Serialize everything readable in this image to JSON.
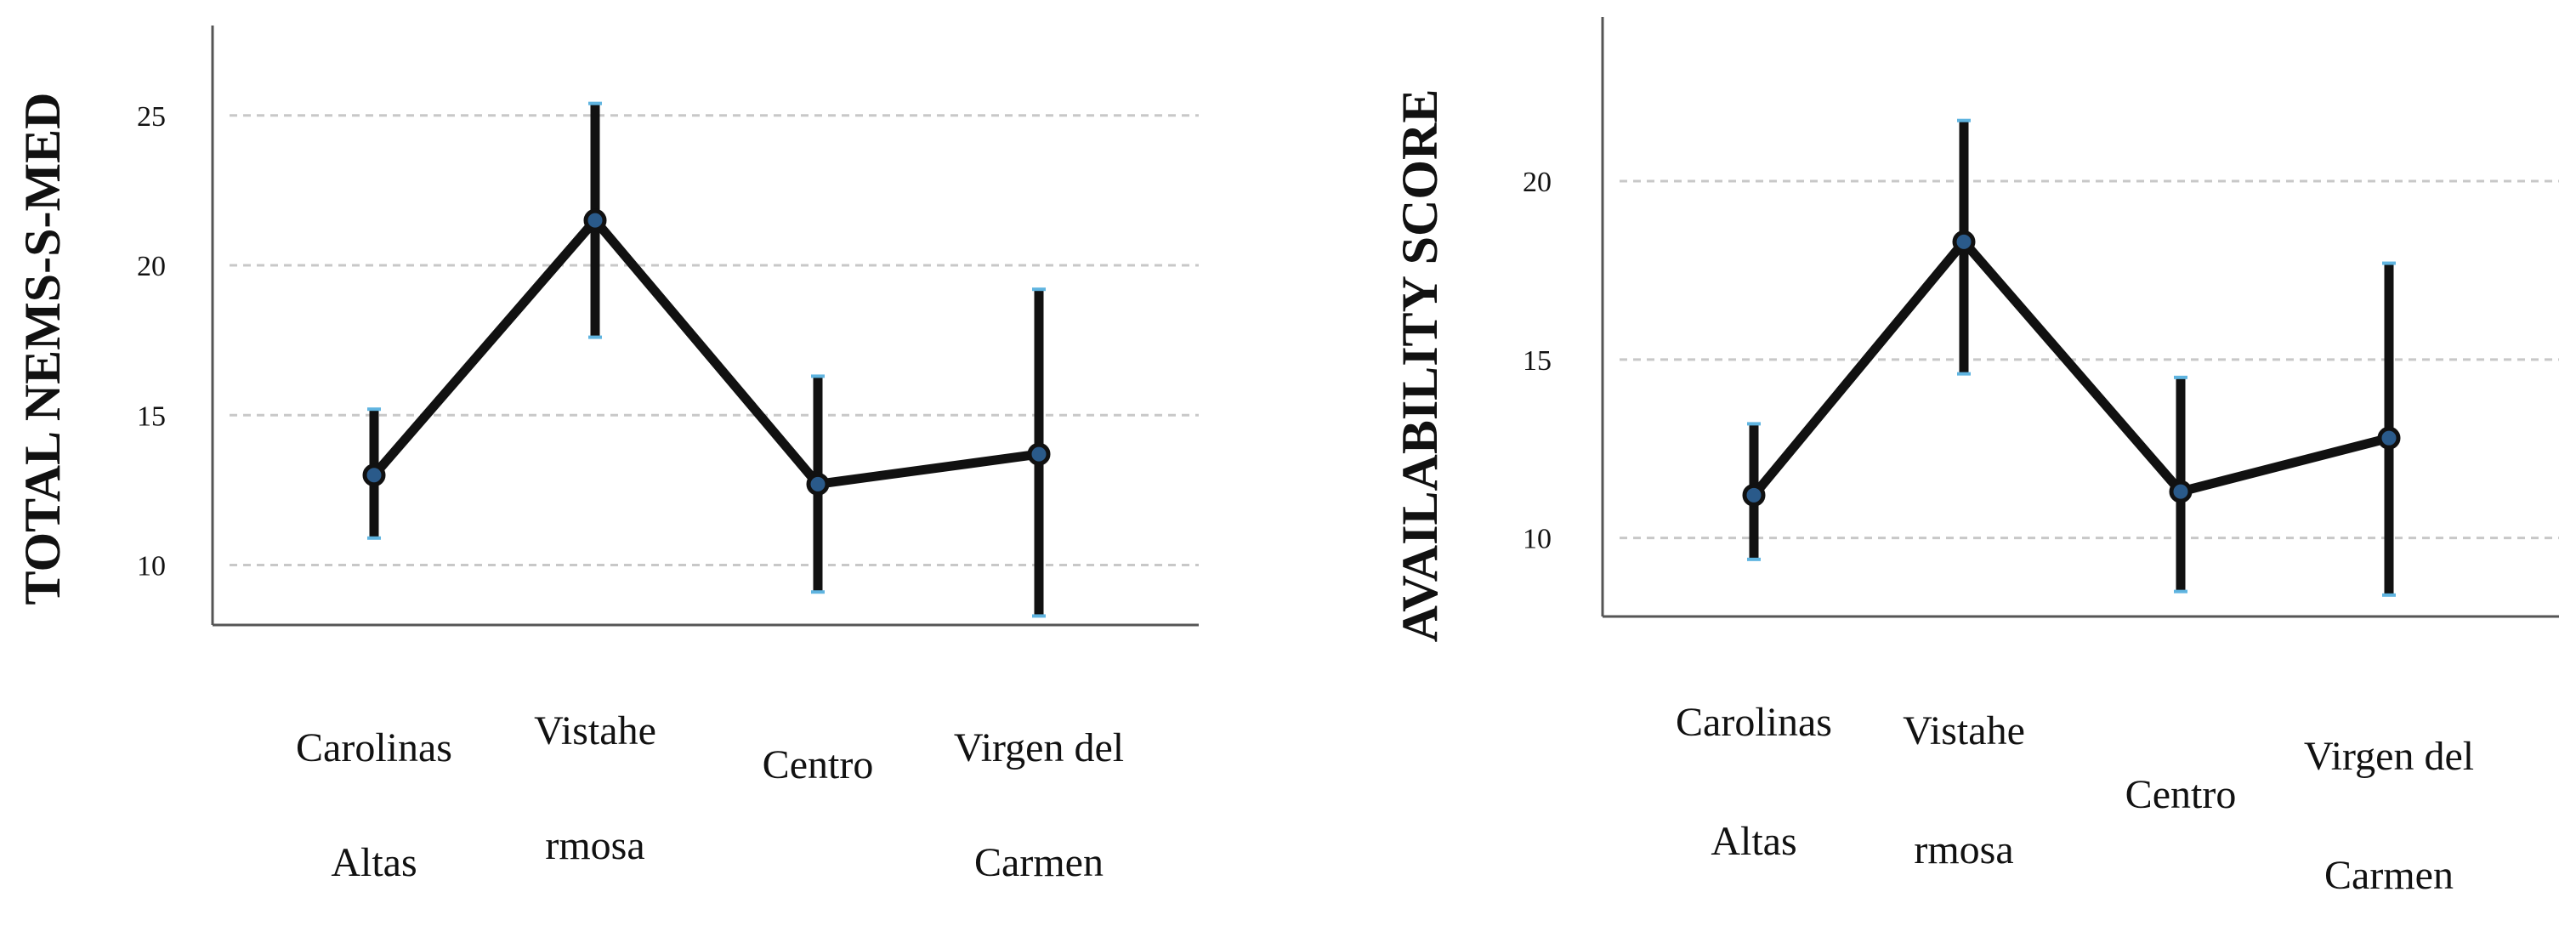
{
  "colors": {
    "line": "#111111",
    "marker": "#2a5a8a",
    "cap": "#5fb4e0",
    "grid": "#c8c8c8",
    "axis": "#555555"
  },
  "chart_data": [
    {
      "type": "line",
      "title": "",
      "xlabel": "",
      "ylabel": "TOTAL NEMS-S-MED",
      "categories": [
        [
          "Carolinas",
          "Altas"
        ],
        [
          "Vistahe",
          "rmosa"
        ],
        [
          "Centro"
        ],
        [
          "Virgen del",
          "Carmen"
        ]
      ],
      "values": [
        13.0,
        21.5,
        12.7,
        13.7
      ],
      "error_low": [
        10.9,
        17.6,
        9.1,
        8.3
      ],
      "error_high": [
        15.2,
        25.4,
        16.3,
        19.2
      ],
      "yticks": [
        10,
        15,
        20,
        25
      ],
      "ylim": [
        8,
        28
      ],
      "grid": true,
      "legend": "none"
    },
    {
      "type": "line",
      "title": "",
      "xlabel": "",
      "ylabel": "AVAILABILITY SCORE",
      "categories": [
        [
          "Carolinas",
          "Altas"
        ],
        [
          "Vistahe",
          "rmosa"
        ],
        [
          "Centro"
        ],
        [
          "Virgen del",
          "Carmen"
        ]
      ],
      "values": [
        11.2,
        18.3,
        11.3,
        12.8
      ],
      "error_low": [
        9.4,
        14.6,
        8.5,
        8.4
      ],
      "error_high": [
        13.2,
        21.7,
        14.5,
        17.7
      ],
      "yticks": [
        10,
        15,
        20
      ],
      "ylim": [
        7.8,
        24.6
      ],
      "grid": true,
      "legend": "none"
    }
  ]
}
